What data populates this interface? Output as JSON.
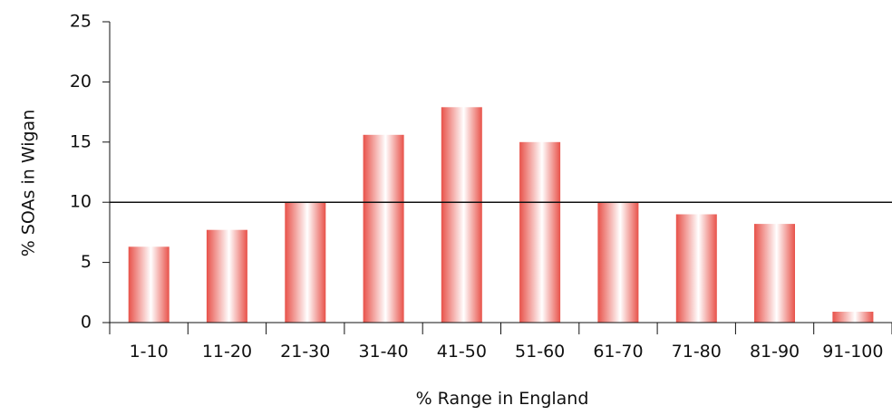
{
  "chart_data": {
    "type": "bar",
    "xlabel": "% Range in England",
    "ylabel": "% SOAs in Wigan",
    "categories": [
      "1-10",
      "11-20",
      "21-30",
      "31-40",
      "41-50",
      "51-60",
      "61-70",
      "71-80",
      "81-90",
      "91-100"
    ],
    "values": [
      6.3,
      7.7,
      10.0,
      15.6,
      17.9,
      15.0,
      10.0,
      9.0,
      8.2,
      0.9
    ],
    "ylim": [
      0,
      25
    ],
    "yticks": [
      "0",
      "5",
      "10",
      "15",
      "20",
      "25"
    ],
    "reference_line": 10,
    "grid": false,
    "legend": "none",
    "bar_color": "#e8524a",
    "bar_highlight": "#ffffff"
  }
}
